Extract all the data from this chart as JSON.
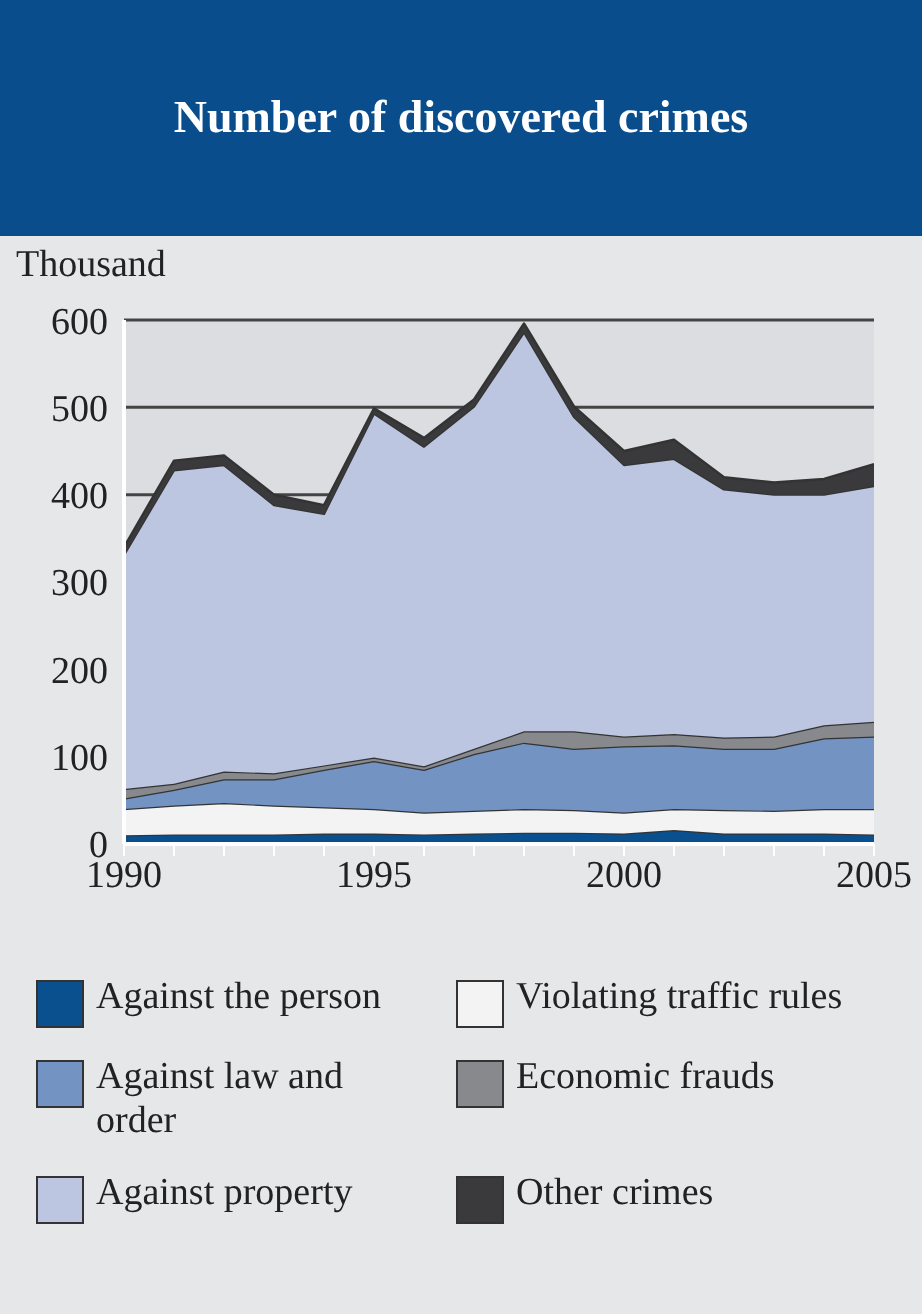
{
  "chart_data": {
    "type": "area",
    "title": "Number of discovered crimes",
    "ylabel": "Thousand",
    "stacked": true,
    "grid": "y",
    "legend": "bottom",
    "x": [
      1990,
      1991,
      1992,
      1993,
      1994,
      1995,
      1996,
      1997,
      1998,
      1999,
      2000,
      2001,
      2002,
      2003,
      2004,
      2005
    ],
    "xlim": [
      1990,
      2005
    ],
    "xticks": [
      1990,
      {
        "value": 1991,
        "label": null
      },
      {
        "value": 1992,
        "label": null
      },
      {
        "value": 1993,
        "label": null
      },
      {
        "value": 1994,
        "label": null
      },
      1995,
      {
        "value": 1996,
        "label": null
      },
      {
        "value": 1997,
        "label": null
      },
      {
        "value": 1998,
        "label": null
      },
      {
        "value": 1999,
        "label": null
      },
      2000,
      {
        "value": 2001,
        "label": null
      },
      {
        "value": 2002,
        "label": null
      },
      {
        "value": 2003,
        "label": null
      },
      {
        "value": 2004,
        "label": null
      },
      2005
    ],
    "ylim": [
      0,
      600
    ],
    "yticks": [
      0,
      100,
      200,
      300,
      400,
      500,
      600
    ],
    "series": [
      {
        "name": "Against the person",
        "color": "#0a4f8e",
        "values": [
          10,
          11,
          11,
          11,
          12,
          12,
          11,
          12,
          13,
          13,
          12,
          16,
          12,
          12,
          12,
          11
        ]
      },
      {
        "name": "Violating traffic rules",
        "color": "#f3f3f4",
        "values": [
          30,
          33,
          36,
          33,
          30,
          28,
          25,
          26,
          27,
          26,
          24,
          24,
          27,
          26,
          28,
          29
        ]
      },
      {
        "name": "Against law and order",
        "color": "#7393c3",
        "values": [
          12,
          18,
          27,
          30,
          43,
          55,
          49,
          65,
          76,
          70,
          76,
          73,
          70,
          71,
          81,
          83
        ]
      },
      {
        "name": "Economic frauds",
        "color": "#87898d",
        "values": [
          11,
          7,
          9,
          7,
          5,
          4,
          4,
          6,
          13,
          20,
          11,
          13,
          13,
          14,
          15,
          17
        ]
      },
      {
        "name": "Against property",
        "color": "#bcc6e1",
        "values": [
          268,
          359,
          351,
          307,
          288,
          394,
          366,
          392,
          457,
          360,
          311,
          315,
          284,
          277,
          264,
          270
        ]
      },
      {
        "name": "Other crimes",
        "color": "#3a3a3c",
        "values": [
          9,
          11,
          11,
          12,
          10,
          6,
          10,
          8,
          10,
          12,
          16,
          22,
          14,
          14,
          18,
          25
        ]
      }
    ]
  }
}
